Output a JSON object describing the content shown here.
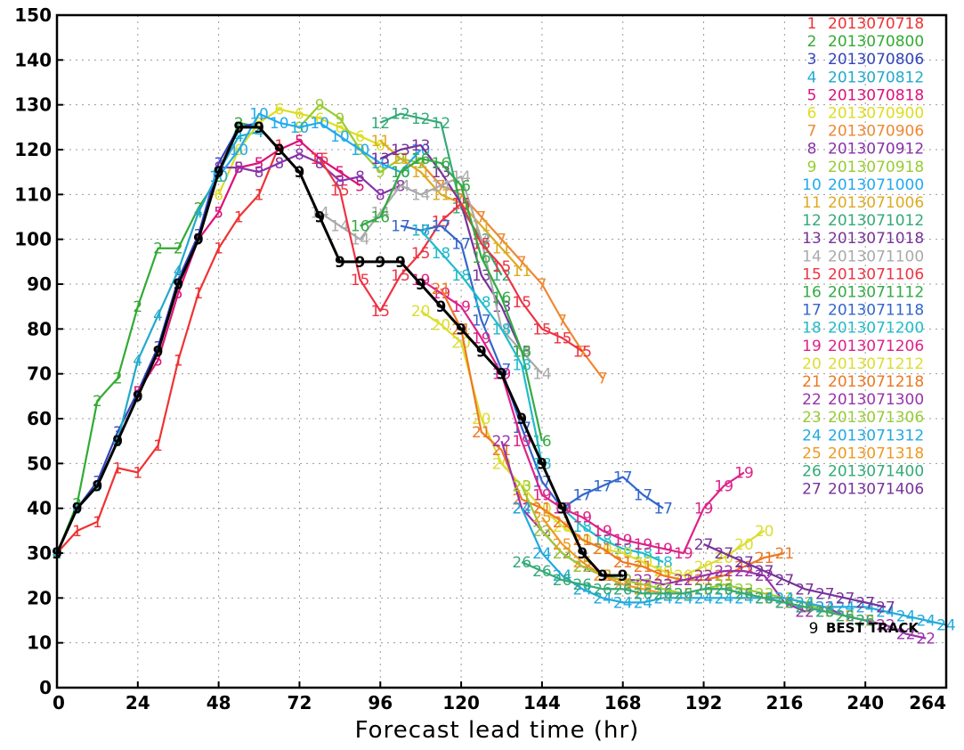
{
  "chart_data": {
    "type": "line",
    "xlabel": "Forecast lead time (hr)",
    "ylabel": "",
    "xlim": [
      0,
      264
    ],
    "ylim": [
      0,
      150
    ],
    "x_ticks": [
      "0",
      "24",
      "48",
      "72",
      "96",
      "120",
      "144",
      "168",
      "192",
      "216",
      "240",
      "264"
    ],
    "y_ticks": [
      "0",
      "10",
      "20",
      "30",
      "40",
      "50",
      "60",
      "70",
      "80",
      "90",
      "100",
      "110",
      "120",
      "130",
      "140",
      "150"
    ],
    "grid": true,
    "legend_position": "top-right",
    "best_track": {
      "marker": "9",
      "label": "BEST TRACK",
      "color": "#000000",
      "x": [
        0,
        6,
        12,
        18,
        24,
        30,
        36,
        42,
        48,
        54,
        60,
        66,
        72,
        78,
        84,
        90,
        96,
        102,
        108,
        114,
        120,
        126,
        132,
        138,
        144,
        150,
        156,
        162,
        168
      ],
      "y": [
        30,
        40,
        45,
        55,
        65,
        75,
        90,
        100,
        115,
        125,
        125,
        120,
        115,
        105,
        95,
        95,
        95,
        95,
        90,
        85,
        80,
        75,
        70,
        60,
        50,
        40,
        30,
        25,
        25
      ]
    },
    "series": [
      {
        "marker": "1",
        "name": "2013070718",
        "color": "#ee3333",
        "x": [
          0,
          6,
          12,
          18,
          24,
          30,
          36,
          42,
          48,
          54,
          60,
          66
        ],
        "y": [
          30,
          35,
          37,
          49,
          48,
          54,
          73,
          88,
          98,
          105,
          110,
          121
        ]
      },
      {
        "marker": "2",
        "name": "2013070800",
        "color": "#33aa33",
        "x": [
          0,
          6,
          12,
          18,
          24,
          30,
          36,
          42,
          48,
          54,
          60
        ],
        "y": [
          30,
          41,
          64,
          69,
          85,
          98,
          98,
          107,
          114,
          126,
          125
        ]
      },
      {
        "marker": "3",
        "name": "2013070806",
        "color": "#3344bb",
        "x": [
          0,
          6,
          12,
          18,
          24,
          30,
          36,
          42,
          48,
          54,
          60
        ],
        "y": [
          30,
          40,
          46,
          57,
          66,
          76,
          91,
          101,
          117,
          125,
          126
        ]
      },
      {
        "marker": "4",
        "name": "2013070812",
        "color": "#22aacc",
        "x": [
          0,
          6,
          12,
          18,
          24,
          30,
          36,
          42,
          48,
          54,
          60
        ],
        "y": [
          30,
          40,
          45,
          55,
          73,
          83,
          93,
          106,
          115,
          123,
          124
        ]
      },
      {
        "marker": "5",
        "name": "2013070818",
        "color": "#dd1177",
        "x": [
          24,
          30,
          36,
          42,
          48,
          54,
          60,
          66,
          72,
          78,
          84,
          90
        ],
        "y": [
          66,
          73,
          88,
          100,
          106,
          116,
          117,
          120,
          122,
          118,
          115,
          112
        ]
      },
      {
        "marker": "6",
        "name": "2013070900",
        "color": "#dddd22",
        "x": [
          48,
          54,
          60,
          66,
          72,
          78,
          84,
          90,
          96
        ],
        "y": [
          110,
          120,
          126,
          129,
          128,
          127,
          125,
          123,
          121
        ]
      },
      {
        "marker": "7",
        "name": "2013070906",
        "color": "#ee8833",
        "x": [
          108,
          114,
          120,
          126,
          132,
          138,
          144,
          150,
          156,
          162
        ],
        "y": [
          117,
          112,
          110,
          105,
          100,
          95,
          90,
          82,
          75,
          69
        ]
      },
      {
        "marker": "8",
        "name": "2013070912",
        "color": "#8833aa",
        "x": [
          48,
          54,
          60,
          66,
          72,
          78,
          84,
          90,
          96,
          102
        ],
        "y": [
          116,
          116,
          115,
          117,
          119,
          117,
          113,
          114,
          110,
          112
        ]
      },
      {
        "marker": "9",
        "name": "2013070918",
        "color": "#99cc33",
        "x": [
          72,
          78,
          84,
          90,
          96,
          102,
          108
        ],
        "y": [
          125,
          130,
          127,
          120,
          115,
          118,
          117
        ]
      },
      {
        "marker": "10",
        "name": "2013071000",
        "color": "#22aaee",
        "x": [
          48,
          54,
          60,
          66,
          72,
          78,
          84,
          90,
          96,
          102,
          108
        ],
        "y": [
          114,
          120,
          128,
          126,
          125,
          126,
          123,
          120,
          117,
          115,
          120
        ]
      },
      {
        "marker": "11",
        "name": "2013071006",
        "color": "#ddaa22",
        "x": [
          96,
          102,
          108,
          114,
          120,
          126,
          132,
          138
        ],
        "y": [
          122,
          118,
          115,
          110,
          108,
          103,
          98,
          93
        ]
      },
      {
        "marker": "12",
        "name": "2013071012",
        "color": "#33aa77",
        "x": [
          96,
          102,
          108,
          114,
          120,
          126,
          132
        ],
        "y": [
          126,
          128,
          127,
          126,
          107,
          100,
          92
        ]
      },
      {
        "marker": "13",
        "name": "2013071018",
        "color": "#773399",
        "x": [
          96,
          102,
          108,
          114,
          120,
          126,
          132,
          138
        ],
        "y": [
          118,
          120,
          121,
          115,
          108,
          92,
          85,
          75
        ]
      },
      {
        "marker": "14",
        "name": "2013071100",
        "color": "#aaaaaa",
        "x": [
          78,
          84,
          90,
          96,
          102,
          108,
          114,
          120,
          126,
          132,
          138,
          144
        ],
        "y": [
          106,
          103,
          100,
          106,
          112,
          110,
          112,
          114,
          100,
          80,
          75,
          70
        ]
      },
      {
        "marker": "15",
        "name": "2013071106",
        "color": "#ee3344",
        "x": [
          78,
          84,
          90,
          96,
          102,
          108,
          114,
          120,
          126,
          132,
          138,
          144,
          150,
          156
        ],
        "y": [
          118,
          111,
          91,
          84,
          92,
          97,
          104,
          108,
          99,
          94,
          86,
          80,
          78,
          75
        ]
      },
      {
        "marker": "16",
        "name": "2013071112",
        "color": "#33aa44",
        "x": [
          90,
          96,
          102,
          108,
          114,
          120,
          126,
          132,
          138,
          144
        ],
        "y": [
          103,
          105,
          115,
          118,
          117,
          112,
          96,
          87,
          75,
          55
        ]
      },
      {
        "marker": "17",
        "name": "2013071118",
        "color": "#3366cc",
        "x": [
          102,
          108,
          114,
          120,
          126,
          132,
          138,
          144,
          150,
          156,
          162,
          168,
          174,
          180
        ],
        "y": [
          103,
          102,
          103,
          99,
          82,
          71,
          58,
          46,
          40,
          43,
          45,
          47,
          43,
          40
        ]
      },
      {
        "marker": "18",
        "name": "2013071200",
        "color": "#22bbcc",
        "x": [
          108,
          114,
          120,
          126,
          132,
          138,
          144,
          150,
          156,
          162,
          168,
          174,
          180
        ],
        "y": [
          102,
          97,
          92,
          86,
          80,
          72,
          50,
          40,
          36,
          33,
          31,
          30,
          28
        ]
      },
      {
        "marker": "19",
        "name": "2013071206",
        "color": "#dd2288",
        "x": [
          108,
          114,
          120,
          126,
          132,
          138,
          144,
          150,
          156,
          162,
          168,
          174,
          180,
          186,
          192,
          198,
          204
        ],
        "y": [
          91,
          88,
          85,
          78,
          70,
          55,
          43,
          40,
          38,
          35,
          33,
          32,
          31,
          30,
          40,
          45,
          48
        ]
      },
      {
        "marker": "20",
        "name": "2013071212",
        "color": "#dddd33",
        "x": [
          108,
          114,
          120,
          126,
          132,
          138,
          144,
          150,
          156,
          162,
          168,
          174,
          180,
          186,
          192,
          198,
          204,
          210
        ],
        "y": [
          84,
          81,
          77,
          60,
          50,
          45,
          40,
          36,
          33,
          31,
          30,
          28,
          26,
          25,
          27,
          29,
          32,
          35
        ]
      },
      {
        "marker": "21",
        "name": "2013071218",
        "color": "#ee7722",
        "x": [
          114,
          120,
          126,
          132,
          138,
          144,
          150,
          156,
          162,
          168,
          174,
          180,
          186,
          192,
          198,
          204,
          210,
          216
        ],
        "y": [
          89,
          80,
          57,
          53,
          42,
          40,
          37,
          33,
          31,
          28,
          27,
          25,
          24,
          24,
          25,
          27,
          29,
          30
        ]
      },
      {
        "marker": "22",
        "name": "2013071300",
        "color": "#9933aa",
        "x": [
          132,
          138,
          144,
          150,
          156,
          162,
          168,
          174,
          180,
          186,
          192,
          198,
          204,
          210,
          216,
          222,
          228,
          234,
          240,
          246,
          252,
          258
        ],
        "y": [
          55,
          40,
          35,
          30,
          27,
          25,
          24,
          24,
          23,
          24,
          25,
          26,
          26,
          25,
          19,
          17,
          18,
          16,
          15,
          14,
          12,
          11
        ]
      },
      {
        "marker": "23",
        "name": "2013071306",
        "color": "#99cc33",
        "x": [
          138,
          144,
          150,
          156,
          162,
          168,
          174,
          180,
          186,
          192,
          198,
          204,
          210,
          216,
          222,
          228,
          234,
          240
        ],
        "y": [
          45,
          35,
          30,
          27,
          25,
          24,
          23,
          22,
          21,
          22,
          23,
          22,
          21,
          20,
          19,
          17,
          16,
          15
        ]
      },
      {
        "marker": "24",
        "name": "2013071312",
        "color": "#22aadd",
        "x": [
          138,
          144,
          150,
          156,
          162,
          168,
          174,
          180,
          186,
          192,
          198,
          204,
          210,
          216,
          222,
          228,
          234,
          240,
          246,
          252,
          258,
          264
        ],
        "y": [
          40,
          30,
          25,
          22,
          20,
          19,
          19,
          20,
          20,
          20,
          20,
          20,
          20,
          20,
          19,
          18,
          18,
          18,
          17,
          16,
          15,
          14
        ]
      },
      {
        "marker": "25",
        "name": "2013071318",
        "color": "#ee9922",
        "x": [
          144,
          150,
          156,
          162,
          168,
          174,
          180,
          186,
          192,
          198,
          204,
          210,
          216,
          222,
          228,
          234,
          240
        ],
        "y": [
          38,
          32,
          28,
          25,
          23,
          22,
          21,
          21,
          22,
          22,
          21,
          20,
          19,
          18,
          17,
          16,
          15
        ]
      },
      {
        "marker": "26",
        "name": "2013071400",
        "color": "#33aa77",
        "x": [
          138,
          144,
          150,
          156,
          162,
          168,
          174,
          180,
          186,
          192,
          198,
          204,
          210,
          216,
          222,
          228,
          234,
          240
        ],
        "y": [
          28,
          26,
          24,
          23,
          22,
          22,
          21,
          21,
          21,
          22,
          22,
          21,
          20,
          19,
          18,
          17,
          16,
          15
        ]
      },
      {
        "marker": "27",
        "name": "2013071406",
        "color": "#773399",
        "x": [
          192,
          198,
          204,
          210,
          216,
          222,
          228,
          234,
          240,
          246
        ],
        "y": [
          32,
          30,
          28,
          26,
          24,
          22,
          21,
          20,
          19,
          18
        ]
      }
    ]
  }
}
